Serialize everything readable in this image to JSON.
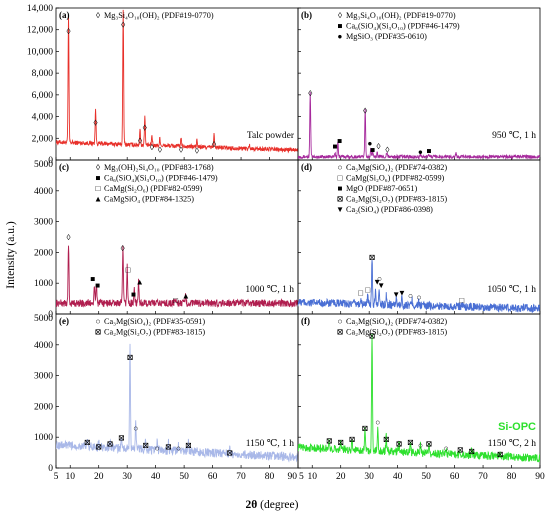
{
  "figure": {
    "y_axis_title": "Intensity (a.u.)",
    "x_axis_title_prefix": "2",
    "x_axis_title_theta": "θ",
    "x_axis_title_suffix": " (degree)"
  },
  "chart_data": [
    {
      "type": "line",
      "panel": "(a)",
      "color": "#e8302a",
      "xlim": [
        5,
        90
      ],
      "ylim": [
        0,
        14000
      ],
      "xticks": [
        "5",
        "10",
        "20",
        "30",
        "40",
        "50",
        "60",
        "70",
        "80",
        "90"
      ],
      "yticks": [
        "0",
        "2,000",
        "4,000",
        "6,000",
        "8,000",
        "10,000",
        "12,000",
        "14,000"
      ],
      "condition": "Talc powder",
      "baseline": 1500,
      "noise": 200,
      "peaks": [
        {
          "x": 9.4,
          "y": 11600
        },
        {
          "x": 18.9,
          "y": 3200
        },
        {
          "x": 28.6,
          "y": 12200
        },
        {
          "x": 34.5,
          "y": 1500
        },
        {
          "x": 36.2,
          "y": 2700
        },
        {
          "x": 38.7,
          "y": 900
        },
        {
          "x": 41.5,
          "y": 700
        },
        {
          "x": 48.9,
          "y": 700
        },
        {
          "x": 54.5,
          "y": 600
        },
        {
          "x": 60.5,
          "y": 1200
        },
        {
          "x": 73.0,
          "y": 300
        }
      ],
      "legend": [
        {
          "marker": "◊",
          "label": "Mg₃Si₄O₁₀(OH)₂ (PDF#19-0770)"
        }
      ],
      "markers": [
        {
          "symbol": "◊",
          "x": 9.4,
          "y": 11600
        },
        {
          "symbol": "◊",
          "x": 18.9,
          "y": 3200
        },
        {
          "symbol": "◊",
          "x": 28.6,
          "y": 12200
        },
        {
          "symbol": "◊",
          "x": 34.5,
          "y": 1500
        },
        {
          "symbol": "◊",
          "x": 36.2,
          "y": 2700
        },
        {
          "symbol": "◊",
          "x": 38.7,
          "y": 900
        },
        {
          "symbol": "◊",
          "x": 41.5,
          "y": 700
        },
        {
          "symbol": "◊",
          "x": 48.9,
          "y": 700
        },
        {
          "symbol": "◊",
          "x": 54.5,
          "y": 600
        },
        {
          "symbol": "◊",
          "x": 60.5,
          "y": 1200
        }
      ]
    },
    {
      "type": "line",
      "panel": "(b)",
      "color": "#a6299c",
      "xlim": [
        5,
        90
      ],
      "ylim": [
        0,
        14000
      ],
      "xticks": [
        "5",
        "10",
        "20",
        "30",
        "40",
        "50",
        "60",
        "70",
        "80",
        "90"
      ],
      "yticks": [
        "0",
        "2,000",
        "4,000",
        "6,000",
        "8,000",
        "10,000",
        "12,000",
        "14,000"
      ],
      "condition": "950 ℃, 1 h",
      "baseline": 300,
      "noise": 150,
      "peaks": [
        {
          "x": 9.3,
          "y": 5900
        },
        {
          "x": 18.0,
          "y": 300
        },
        {
          "x": 19.0,
          "y": 1400
        },
        {
          "x": 28.6,
          "y": 4300
        },
        {
          "x": 30.6,
          "y": 700
        },
        {
          "x": 31.2,
          "y": 400
        },
        {
          "x": 32.8,
          "y": 500
        },
        {
          "x": 36.2,
          "y": 400
        },
        {
          "x": 48.0,
          "y": 200
        },
        {
          "x": 51.0,
          "y": 200
        },
        {
          "x": 60.5,
          "y": 300
        }
      ],
      "legend": [
        {
          "marker": "◊",
          "label": "Mg₃Si₄O₁₀(OH)₂ (PDF#19-0770)"
        },
        {
          "marker": "■",
          "label": "Ca₆(SiO₄)(Si₃O₁₀) (PDF#46-1479)"
        },
        {
          "marker": "●",
          "label": "MgSiO₃ (PDF#35-0610)"
        }
      ],
      "markers": [
        {
          "symbol": "◊",
          "x": 9.3,
          "y": 5900
        },
        {
          "symbol": "■",
          "x": 18.0,
          "y": 1000
        },
        {
          "symbol": "■",
          "x": 19.6,
          "y": 1500
        },
        {
          "symbol": "◊",
          "x": 28.6,
          "y": 4300
        },
        {
          "symbol": "●",
          "x": 30.3,
          "y": 1300
        },
        {
          "symbol": "■",
          "x": 31.2,
          "y": 700
        },
        {
          "symbol": "◊",
          "x": 33.3,
          "y": 1000
        },
        {
          "symbol": "◊",
          "x": 36.4,
          "y": 700
        },
        {
          "symbol": "●",
          "x": 48.0,
          "y": 500
        },
        {
          "symbol": "■",
          "x": 51.0,
          "y": 600
        }
      ]
    },
    {
      "type": "line",
      "panel": "(c)",
      "color": "#b01e4f",
      "xlim": [
        5,
        90
      ],
      "ylim": [
        0,
        5000
      ],
      "xticks": [
        "5",
        "10",
        "20",
        "30",
        "40",
        "50",
        "60",
        "70",
        "80",
        "90"
      ],
      "yticks": [
        "0",
        "1000",
        "2000",
        "3000",
        "4000",
        "5000"
      ],
      "condition": "1000 ℃, 1 h",
      "baseline": 350,
      "noise": 120,
      "peaks": [
        {
          "x": 9.4,
          "y": 1900
        },
        {
          "x": 18.5,
          "y": 500
        },
        {
          "x": 19.2,
          "y": 700
        },
        {
          "x": 28.5,
          "y": 1800
        },
        {
          "x": 30.0,
          "y": 1200
        },
        {
          "x": 32.5,
          "y": 500
        },
        {
          "x": 34.0,
          "y": 700
        },
        {
          "x": 47.0,
          "y": 150
        },
        {
          "x": 50.5,
          "y": 250
        }
      ],
      "legend": [
        {
          "marker": "◊",
          "label": "Mg₃(OH)₂Si₄O₁₀ (PDF#83-1768)"
        },
        {
          "marker": "■",
          "label": "Ca₆(SiO₄)(Si₃O₁₀) (PDF#46-1479)"
        },
        {
          "marker": "□",
          "label": "CaMg(Si₂O₆) (PDF#82-0599)"
        },
        {
          "marker": "▲",
          "label": "CaMgSiO₄ (PDF#84-1325)"
        }
      ],
      "markers": [
        {
          "symbol": "◊",
          "x": 9.4,
          "y": 2400
        },
        {
          "symbol": "■",
          "x": 17.9,
          "y": 1050
        },
        {
          "symbol": "■",
          "x": 19.6,
          "y": 850
        },
        {
          "symbol": "◊",
          "x": 28.4,
          "y": 2050
        },
        {
          "symbol": "□",
          "x": 30.3,
          "y": 1350
        },
        {
          "symbol": "■",
          "x": 32.2,
          "y": 550
        },
        {
          "symbol": "▲",
          "x": 34.4,
          "y": 950
        },
        {
          "symbol": "□",
          "x": 47.0,
          "y": 350
        },
        {
          "symbol": "▲",
          "x": 50.6,
          "y": 500
        }
      ]
    },
    {
      "type": "line",
      "panel": "(d)",
      "color": "#4a6fd4",
      "xlim": [
        5,
        90
      ],
      "ylim": [
        0,
        5000
      ],
      "xticks": [
        "5",
        "10",
        "20",
        "30",
        "40",
        "50",
        "60",
        "70",
        "80",
        "90"
      ],
      "yticks": [
        "0",
        "1000",
        "2000",
        "3000",
        "4000",
        "5000"
      ],
      "condition": "1050 ℃, 1 h",
      "baseline": 250,
      "noise": 130,
      "peaks": [
        {
          "x": 27.0,
          "y": 200
        },
        {
          "x": 29.5,
          "y": 300
        },
        {
          "x": 31.0,
          "y": 1550
        },
        {
          "x": 32.2,
          "y": 500
        },
        {
          "x": 33.5,
          "y": 600
        },
        {
          "x": 36.0,
          "y": 300
        },
        {
          "x": 39.5,
          "y": 250
        },
        {
          "x": 41.5,
          "y": 250
        },
        {
          "x": 45.0,
          "y": 200
        },
        {
          "x": 47.5,
          "y": 150
        },
        {
          "x": 62.5,
          "y": 100
        }
      ],
      "legend": [
        {
          "marker": "○",
          "label": "Ca₃Mg(SiO₄)₂ (PDF#74-0382)"
        },
        {
          "marker": "□",
          "label": "CaMg(Si₂O₆) (PDF#82-0599)"
        },
        {
          "marker": "■",
          "label": "MgO (PDF#87-0651)"
        },
        {
          "marker": "⊠",
          "label": "Ca₂Mg(Si₂O₇) (PDF#83-1815)"
        },
        {
          "marker": "▼",
          "label": "Ca₂(SiO₄) (PDF#86-0398)"
        }
      ],
      "markers": [
        {
          "symbol": "□",
          "x": 27.0,
          "y": 600
        },
        {
          "symbol": "□",
          "x": 29.5,
          "y": 700
        },
        {
          "symbol": "⊠",
          "x": 31.0,
          "y": 1750
        },
        {
          "symbol": "▼",
          "x": 32.8,
          "y": 950
        },
        {
          "symbol": "▼",
          "x": 34.2,
          "y": 850
        },
        {
          "symbol": "○",
          "x": 33.6,
          "y": 1050
        },
        {
          "symbol": "▼",
          "x": 39.5,
          "y": 550
        },
        {
          "symbol": "▼",
          "x": 41.5,
          "y": 600
        },
        {
          "symbol": "○",
          "x": 44.5,
          "y": 500
        },
        {
          "symbol": "○",
          "x": 47.5,
          "y": 450
        },
        {
          "symbol": "□",
          "x": 62.5,
          "y": 350
        }
      ]
    },
    {
      "type": "line",
      "panel": "(e)",
      "color": "#a9b8e8",
      "xlim": [
        5,
        90
      ],
      "ylim": [
        0,
        5000
      ],
      "xticks": [
        "5",
        "10",
        "20",
        "30",
        "40",
        "50",
        "60",
        "70",
        "80",
        "90"
      ],
      "yticks": [
        "0",
        "1000",
        "2000",
        "3000",
        "4000",
        "5000"
      ],
      "condition": "1150 ℃, 1 h",
      "baseline": 500,
      "noise": 140,
      "peaks": [
        {
          "x": 16.0,
          "y": 200
        },
        {
          "x": 20.0,
          "y": 150
        },
        {
          "x": 24.0,
          "y": 250
        },
        {
          "x": 28.0,
          "y": 350
        },
        {
          "x": 31.0,
          "y": 3300
        },
        {
          "x": 33.0,
          "y": 900
        },
        {
          "x": 36.5,
          "y": 350
        },
        {
          "x": 40.5,
          "y": 250
        },
        {
          "x": 44.5,
          "y": 250
        },
        {
          "x": 48.0,
          "y": 200
        },
        {
          "x": 51.5,
          "y": 300
        },
        {
          "x": 66.0,
          "y": 150
        }
      ],
      "legend": [
        {
          "marker": "○",
          "label": "Ca₃Mg(SiO₄)₂ (PDF#35-0591)"
        },
        {
          "marker": "⊠",
          "label": "Ca₂Mg(Si₂O₇) (PDF#83-1815)"
        }
      ],
      "markers": [
        {
          "symbol": "⊠",
          "x": 16.0,
          "y": 750
        },
        {
          "symbol": "⊠",
          "x": 20.0,
          "y": 600
        },
        {
          "symbol": "⊠",
          "x": 24.0,
          "y": 700
        },
        {
          "symbol": "⊠",
          "x": 28.0,
          "y": 900
        },
        {
          "symbol": "⊠",
          "x": 31.0,
          "y": 3500
        },
        {
          "symbol": "○",
          "x": 33.0,
          "y": 1200
        },
        {
          "symbol": "⊠",
          "x": 36.5,
          "y": 650
        },
        {
          "symbol": "○",
          "x": 40.5,
          "y": 550
        },
        {
          "symbol": "⊠",
          "x": 44.5,
          "y": 600
        },
        {
          "symbol": "○",
          "x": 48.0,
          "y": 550
        },
        {
          "symbol": "⊠",
          "x": 51.5,
          "y": 650
        },
        {
          "symbol": "⊠",
          "x": 66.0,
          "y": 400
        }
      ]
    },
    {
      "type": "line",
      "panel": "(f)",
      "color": "#2ee02e",
      "xlim": [
        5,
        90
      ],
      "ylim": [
        0,
        5000
      ],
      "xticks": [
        "5",
        "10",
        "20",
        "30",
        "40",
        "50",
        "60",
        "70",
        "80",
        "90"
      ],
      "yticks": [
        "0",
        "1000",
        "2000",
        "3000",
        "4000",
        "5000"
      ],
      "condition": "1150 ℃, 2 h",
      "sample_label": "Si-OPC",
      "sample_label_color": "#2ee02e",
      "baseline": 450,
      "noise": 130,
      "peaks": [
        {
          "x": 16.0,
          "y": 250
        },
        {
          "x": 20.0,
          "y": 250
        },
        {
          "x": 24.0,
          "y": 300
        },
        {
          "x": 28.5,
          "y": 700
        },
        {
          "x": 31.0,
          "y": 3750
        },
        {
          "x": 33.0,
          "y": 800
        },
        {
          "x": 36.0,
          "y": 500
        },
        {
          "x": 40.5,
          "y": 300
        },
        {
          "x": 44.5,
          "y": 300
        },
        {
          "x": 48.0,
          "y": 250
        },
        {
          "x": 51.0,
          "y": 300
        },
        {
          "x": 57.0,
          "y": 150
        },
        {
          "x": 62.0,
          "y": 100
        },
        {
          "x": 66.0,
          "y": 150
        },
        {
          "x": 76.0,
          "y": 100
        }
      ],
      "legend": [
        {
          "marker": "○",
          "label": "Ca₃Mg(SiO₄)₂ (PDF#74-0382)"
        },
        {
          "marker": "⊠",
          "label": "Ca₂Mg(Si₂O₇) (PDF#83-1815)"
        }
      ],
      "markers": [
        {
          "symbol": "⊠",
          "x": 16.0,
          "y": 800
        },
        {
          "symbol": "⊠",
          "x": 20.0,
          "y": 750
        },
        {
          "symbol": "⊠",
          "x": 24.0,
          "y": 850
        },
        {
          "symbol": "⊠",
          "x": 28.5,
          "y": 1200
        },
        {
          "symbol": "⊠",
          "x": 31.0,
          "y": 4200
        },
        {
          "symbol": "○",
          "x": 33.0,
          "y": 1400
        },
        {
          "symbol": "⊠",
          "x": 36.0,
          "y": 850
        },
        {
          "symbol": "⊠",
          "x": 40.5,
          "y": 700
        },
        {
          "symbol": "⊠",
          "x": 44.5,
          "y": 750
        },
        {
          "symbol": "○",
          "x": 48.0,
          "y": 650
        },
        {
          "symbol": "⊠",
          "x": 51.0,
          "y": 700
        },
        {
          "symbol": "○",
          "x": 57.0,
          "y": 550
        },
        {
          "symbol": "⊠",
          "x": 62.0,
          "y": 500
        },
        {
          "symbol": "⊠",
          "x": 66.0,
          "y": 450
        },
        {
          "symbol": "⊠",
          "x": 76.0,
          "y": 350
        }
      ]
    }
  ]
}
